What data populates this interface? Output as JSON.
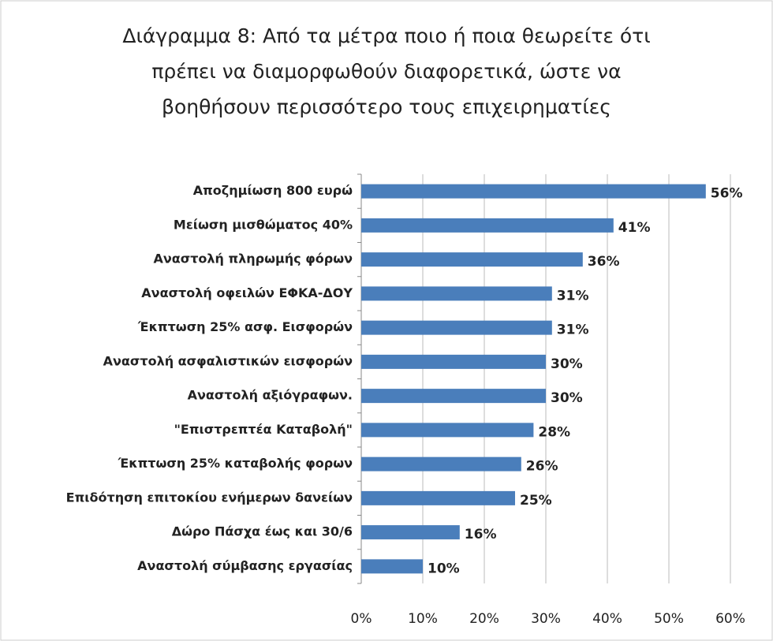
{
  "chart_data": {
    "type": "bar",
    "orientation": "horizontal",
    "title": [
      "Διάγραμμα 8: Από τα μέτρα ποιο ή ποια θεωρείτε ότι",
      "πρέπει να διαμορφωθούν διαφορετικά, ώστε να",
      "βοηθήσουν περισσότερο τους επιχειρηματίες"
    ],
    "categories": [
      "Αποζημίωση 800 ευρώ",
      "Μείωση μισθώματος 40%",
      "Αναστολή πληρωμής φόρων",
      "Αναστολή οφειλών ΕΦΚΑ-ΔΟΥ",
      "Έκπτωση 25% ασφ. Εισφορών",
      "Αναστολή ασφαλιστικών εισφορών",
      "Αναστολή αξιόγραφων.",
      "\"Επιστρεπτέα Καταβολή\"",
      "Έκπτωση 25% καταβολής φορων",
      "Επιδότηση επιτοκίου ενήμερων δανείων",
      "Δώρο Πάσχα έως και 30/6",
      "Αναστολή σύμβασης εργασίας"
    ],
    "values": [
      56,
      41,
      36,
      31,
      31,
      30,
      30,
      28,
      26,
      25,
      16,
      10
    ],
    "value_labels": [
      "56%",
      "41%",
      "36%",
      "31%",
      "31%",
      "30%",
      "30%",
      "28%",
      "26%",
      "25%",
      "16%",
      "10%"
    ],
    "color": "#4a7ebb",
    "xlim": [
      0,
      60
    ],
    "xticks": [
      {
        "value": 0,
        "label": "0%"
      },
      {
        "value": 10,
        "label": "10%"
      },
      {
        "value": 20,
        "label": "20%"
      },
      {
        "value": 30,
        "label": "30%"
      },
      {
        "value": 40,
        "label": "40%"
      },
      {
        "value": 50,
        "label": "50%"
      },
      {
        "value": 60,
        "label": "60%"
      }
    ],
    "grid": true
  }
}
